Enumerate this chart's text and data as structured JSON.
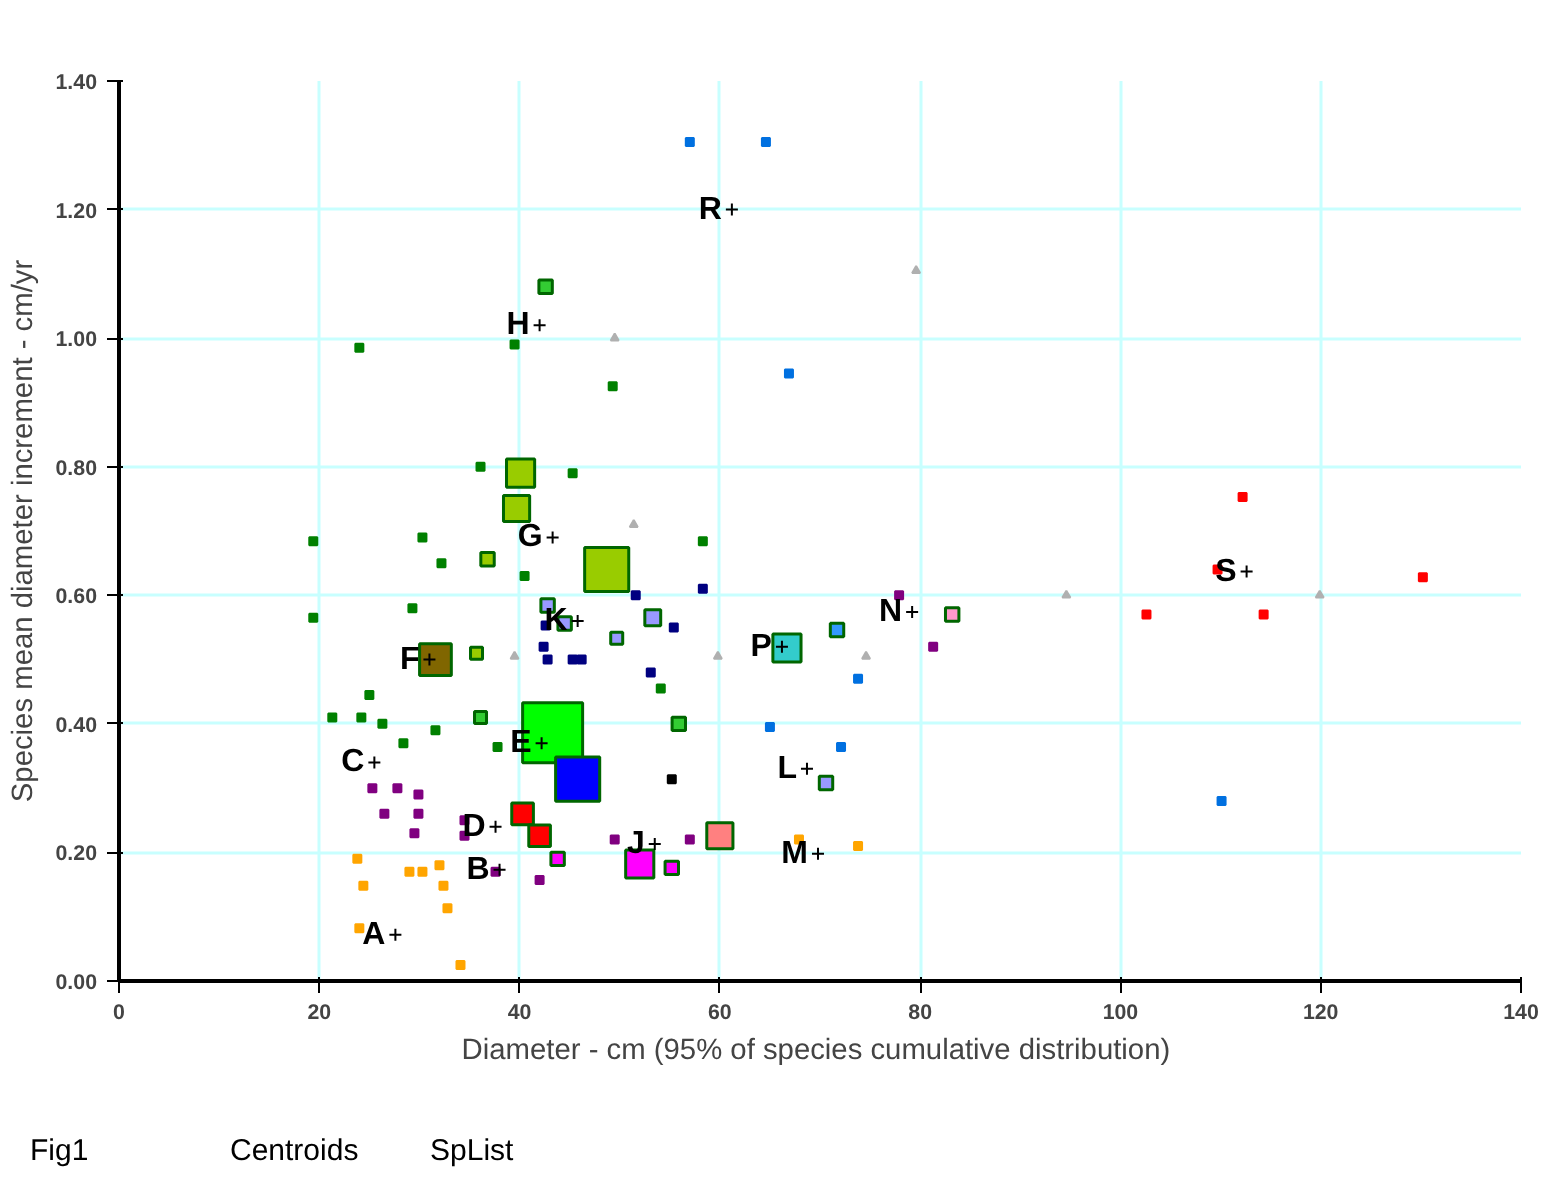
{
  "chart_data": {
    "type": "scatter",
    "xlabel": "Diameter - cm  (95% of species cumulative distribution)",
    "ylabel": "Species mean diameter increment - cm/yr",
    "xlim": [
      0,
      140
    ],
    "xticks": [
      0,
      20,
      40,
      60,
      80,
      100,
      120,
      140
    ],
    "ylim": [
      0,
      1.4
    ],
    "yticks": [
      {
        "value": 0,
        "label": "0.00"
      },
      {
        "value": 0.2,
        "label": "0.20"
      },
      {
        "value": 0.4,
        "label": "0.40"
      },
      {
        "value": 0.6,
        "label": "0.60"
      },
      {
        "value": 0.8,
        "label": "0.80"
      },
      {
        "value": 1.0,
        "label": "1.00"
      },
      {
        "value": 1.2,
        "label": "1.20"
      },
      {
        "value": 1.4,
        "label": "1.40"
      }
    ],
    "grid": true,
    "marker": "square",
    "series": [
      {
        "color": "#008000",
        "x": [
          24.0,
          39.5,
          49.3,
          36.1,
          45.3,
          19.4,
          30.3,
          19.4,
          32.2,
          29.3,
          58.3,
          54.1,
          21.3,
          24.2,
          26.3,
          28.4,
          31.6,
          25.0,
          37.8,
          40.5
        ],
        "values": [
          0.985,
          0.99,
          0.925,
          0.8,
          0.79,
          0.684,
          0.69,
          0.565,
          0.65,
          0.58,
          0.684,
          0.455,
          0.41,
          0.41,
          0.4,
          0.37,
          0.39,
          0.445,
          0.364,
          0.63
        ]
      },
      {
        "color": "#ffa500",
        "x": [
          23.8,
          24.4,
          29.0,
          30.3,
          32.0,
          32.4,
          32.8,
          24.0,
          34.1,
          67.9,
          73.8
        ],
        "values": [
          0.19,
          0.148,
          0.17,
          0.17,
          0.18,
          0.148,
          0.113,
          0.082,
          0.025,
          0.22,
          0.21
        ]
      },
      {
        "color": "#800080",
        "x": [
          25.3,
          27.8,
          29.9,
          26.5,
          29.9,
          29.5,
          34.5,
          34.5,
          42.0,
          37.6,
          49.5,
          57.0,
          77.9,
          81.3
        ],
        "values": [
          0.3,
          0.3,
          0.29,
          0.26,
          0.26,
          0.23,
          0.25,
          0.226,
          0.157,
          0.17,
          0.22,
          0.22,
          0.6,
          0.52
        ]
      },
      {
        "color": "#000080",
        "x": [
          42.6,
          42.4,
          42.8,
          45.3,
          46.2,
          51.6,
          58.3,
          55.4,
          53.1
        ],
        "values": [
          0.553,
          0.52,
          0.5,
          0.5,
          0.5,
          0.6,
          0.61,
          0.55,
          0.48
        ]
      },
      {
        "color": "#0070e0",
        "x": [
          57.0,
          64.6,
          66.9,
          65.0,
          73.8,
          72.1,
          110.1
        ],
        "values": [
          1.305,
          1.305,
          0.945,
          0.395,
          0.47,
          0.364,
          0.28
        ]
      },
      {
        "color": "#ff0000",
        "x": [
          112.2,
          109.7,
          102.6,
          114.3,
          130.2
        ],
        "values": [
          0.753,
          0.64,
          0.57,
          0.57,
          0.628
        ]
      },
      {
        "color": "#000000",
        "x": [
          55.2
        ],
        "values": [
          0.314
        ]
      },
      {
        "color": "#b0b0b0",
        "marker": "triangle",
        "x": [
          79.6,
          51.4,
          59.8,
          74.6,
          94.6,
          119.9,
          39.5,
          49.5
        ],
        "values": [
          1.105,
          0.71,
          0.505,
          0.505,
          0.6,
          0.6,
          0.505,
          1.0
        ]
      },
      {
        "type": "bubble",
        "x": [
          31.6,
          43.3,
          45.8,
          48.7,
          40.1,
          39.7,
          66.7,
          60.0,
          52.0,
          40.3,
          42.0,
          43.8,
          42.6,
          36.8,
          35.7,
          36.1,
          55.9,
          83.2,
          42.8,
          44.5,
          53.3,
          49.7,
          71.7,
          70.6,
          55.2
        ],
        "values": [
          0.5,
          0.386,
          0.314,
          0.64,
          0.79,
          0.735,
          0.518,
          0.226,
          0.182,
          0.26,
          0.226,
          0.19,
          1.08,
          0.656,
          0.51,
          0.41,
          0.4,
          0.57,
          0.584,
          0.556,
          0.565,
          0.533,
          0.546,
          0.308,
          0.176
        ],
        "sizes": [
          0.28,
          1.0,
          0.54,
          0.54,
          0.22,
          0.19,
          0.22,
          0.19,
          0.22,
          0.13,
          0.13,
          0.05,
          0.05,
          0.05,
          0.04,
          0.04,
          0.05,
          0.05,
          0.05,
          0.05,
          0.07,
          0.04,
          0.05,
          0.05,
          0.05
        ],
        "colors": [
          "#806600",
          "#00ff00",
          "#0000ff",
          "#99cc00",
          "#99cc00",
          "#99cc00",
          "#33cccc",
          "#ff8080",
          "#ff00ff",
          "#ff0000",
          "#ff0000",
          "#ff00ff",
          "#33cc33",
          "#99cc00",
          "#99cc00",
          "#33cc33",
          "#33cc33",
          "#ff99cc",
          "#9999ff",
          "#9999ff",
          "#9999ff",
          "#9999ff",
          "#3399ff",
          "#9999ff",
          "#ff00ff"
        ]
      },
      {
        "color": "#000000",
        "marker": "cross",
        "x": [
          27.6,
          38.0,
          25.5,
          37.6,
          42.2,
          31.0,
          43.3,
          42.0,
          53.5,
          45.8,
          68.7,
          69.8,
          79.2,
          66.2,
          61.2,
          112.6
        ],
        "values": [
          0.072,
          0.173,
          0.34,
          0.24,
          0.37,
          0.5,
          0.69,
          1.02,
          0.213,
          0.56,
          0.33,
          0.198,
          0.574,
          0.52,
          1.2,
          0.637
        ]
      }
    ],
    "annotations": [
      {
        "text": "A",
        "x": 27.6,
        "y": 0.072
      },
      {
        "text": "B",
        "x": 38.0,
        "y": 0.173
      },
      {
        "text": "C",
        "x": 25.5,
        "y": 0.34
      },
      {
        "text": "D",
        "x": 37.6,
        "y": 0.24
      },
      {
        "text": "E",
        "x": 42.2,
        "y": 0.37
      },
      {
        "text": "F",
        "x": 31.0,
        "y": 0.5
      },
      {
        "text": "G",
        "x": 43.3,
        "y": 0.69
      },
      {
        "text": "H",
        "x": 42.0,
        "y": 1.02
      },
      {
        "text": "J",
        "x": 53.5,
        "y": 0.213
      },
      {
        "text": "K",
        "x": 45.8,
        "y": 0.56
      },
      {
        "text": "L",
        "x": 68.7,
        "y": 0.33
      },
      {
        "text": "M",
        "x": 69.8,
        "y": 0.198
      },
      {
        "text": "N",
        "x": 79.2,
        "y": 0.574
      },
      {
        "text": "P",
        "x": 66.2,
        "y": 0.52
      },
      {
        "text": "R",
        "x": 61.2,
        "y": 1.2
      },
      {
        "text": "S",
        "x": 112.6,
        "y": 0.637
      },
      "Fig1",
      "Centroids",
      "SpList"
    ]
  }
}
